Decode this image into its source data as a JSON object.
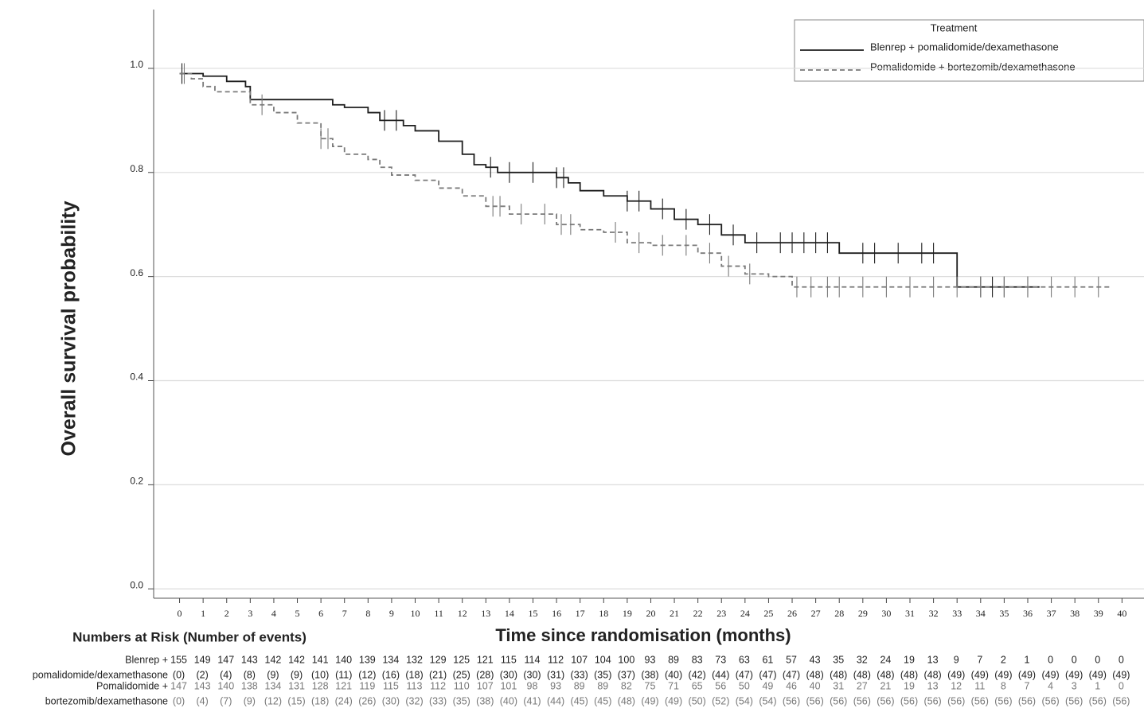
{
  "chart_data": {
    "type": "line",
    "step": "post",
    "y_label": "Overall survival probability",
    "x_label": "Time since randomisation (months)",
    "legend_title": "Treatment",
    "legend_position": "upper right",
    "grid": true,
    "xlim": [
      -1.1,
      40.9
    ],
    "ylim": [
      -0.018,
      1.113
    ],
    "xticks": [
      0,
      1,
      2,
      3,
      4,
      5,
      6,
      7,
      8,
      9,
      10,
      11,
      12,
      13,
      14,
      15,
      16,
      17,
      18,
      19,
      20,
      21,
      22,
      23,
      24,
      25,
      26,
      27,
      28,
      29,
      30,
      31,
      32,
      33,
      34,
      35,
      36,
      37,
      38,
      39,
      40
    ],
    "yticks": [
      {
        "value": 0,
        "label": "0.0"
      },
      0.2,
      0.4,
      0.6,
      0.8,
      {
        "value": 1,
        "label": "1.0"
      }
    ],
    "series": [
      {
        "name": "Blenrep + pomalidomide/dexamethasone",
        "color": "#1e1e1e",
        "dash": "solid",
        "x": [
          0,
          1,
          2,
          2.8,
          3,
          6.5,
          7,
          8,
          8.5,
          9.5,
          10,
          11,
          12,
          12.5,
          13,
          13.5,
          16,
          16.5,
          17,
          18,
          19,
          20,
          21,
          22,
          23,
          24,
          28,
          33,
          36.5
        ],
        "values": [
          0.99,
          0.985,
          0.975,
          0.965,
          0.94,
          0.93,
          0.925,
          0.915,
          0.9,
          0.89,
          0.88,
          0.86,
          0.835,
          0.815,
          0.81,
          0.8,
          0.79,
          0.78,
          0.765,
          0.755,
          0.745,
          0.73,
          0.71,
          0.7,
          0.68,
          0.665,
          0.645,
          0.58,
          0.58
        ],
        "censored_x": [
          0.1,
          8.7,
          9.2,
          13.2,
          14,
          15,
          16,
          16.3,
          19,
          19.5,
          20.5,
          21.5,
          22.5,
          23.5,
          24.5,
          25.5,
          26,
          26.5,
          27,
          27.5,
          29,
          29.5,
          30.5,
          31.5,
          32,
          34,
          34.5,
          35,
          36
        ],
        "censored_y": [
          0.99,
          0.9,
          0.9,
          0.81,
          0.8,
          0.8,
          0.79,
          0.79,
          0.745,
          0.745,
          0.73,
          0.71,
          0.7,
          0.68,
          0.665,
          0.665,
          0.665,
          0.665,
          0.665,
          0.665,
          0.645,
          0.645,
          0.645,
          0.645,
          0.645,
          0.58,
          0.58,
          0.58,
          0.58
        ]
      },
      {
        "name": "Pomalidomide + bortezomib/dexamethasone",
        "color": "#7a7a7a",
        "dash": "dashed",
        "x": [
          0,
          0.5,
          1,
          1.5,
          3,
          4,
          5,
          6,
          6.5,
          7,
          8,
          8.5,
          9,
          10,
          11,
          12,
          13,
          14,
          16,
          17,
          18,
          19,
          20,
          22,
          23,
          24,
          25,
          26,
          39.5
        ],
        "values": [
          0.99,
          0.98,
          0.965,
          0.955,
          0.93,
          0.915,
          0.895,
          0.865,
          0.85,
          0.835,
          0.825,
          0.81,
          0.795,
          0.785,
          0.77,
          0.755,
          0.735,
          0.72,
          0.7,
          0.69,
          0.685,
          0.665,
          0.66,
          0.645,
          0.62,
          0.605,
          0.6,
          0.58,
          0.58
        ],
        "censored_x": [
          0.2,
          3.5,
          6,
          6.3,
          13.3,
          13.6,
          14.5,
          15.5,
          16.2,
          16.6,
          18.5,
          19.5,
          20.5,
          21.5,
          22.5,
          23.3,
          24.2,
          26.2,
          26.8,
          27.5,
          28,
          29,
          30,
          31,
          32,
          33,
          34,
          35,
          36,
          37,
          38,
          39
        ],
        "censored_y": [
          0.99,
          0.93,
          0.865,
          0.865,
          0.735,
          0.735,
          0.72,
          0.72,
          0.7,
          0.7,
          0.685,
          0.665,
          0.66,
          0.66,
          0.645,
          0.62,
          0.605,
          0.58,
          0.58,
          0.58,
          0.58,
          0.58,
          0.58,
          0.58,
          0.58,
          0.58,
          0.58,
          0.58,
          0.58,
          0.58,
          0.58,
          0.58
        ]
      }
    ],
    "risk_table": {
      "title": "Numbers at Risk (Number of events)",
      "rows": [
        {
          "label": [
            "Blenrep +",
            "pomalidomide/dexamethasone"
          ],
          "color": "#1e1e1e",
          "at_risk": [
            155,
            149,
            147,
            143,
            142,
            142,
            141,
            140,
            139,
            134,
            132,
            129,
            125,
            121,
            115,
            114,
            112,
            107,
            104,
            100,
            93,
            89,
            83,
            73,
            63,
            61,
            57,
            43,
            35,
            32,
            24,
            19,
            13,
            9,
            7,
            2,
            1,
            0,
            0,
            0,
            0
          ],
          "events": [
            "(0)",
            "(2)",
            "(4)",
            "(8)",
            "(9)",
            "(9)",
            "(10)",
            "(11)",
            "(12)",
            "(16)",
            "(18)",
            "(21)",
            "(25)",
            "(28)",
            "(30)",
            "(30)",
            "(31)",
            "(33)",
            "(35)",
            "(37)",
            "(38)",
            "(40)",
            "(42)",
            "(44)",
            "(47)",
            "(47)",
            "(47)",
            "(48)",
            "(48)",
            "(48)",
            "(48)",
            "(48)",
            "(48)",
            "(49)",
            "(49)",
            "(49)",
            "(49)",
            "(49)",
            "(49)",
            "(49)",
            "(49)"
          ]
        },
        {
          "label": [
            "Pomalidomide +",
            "bortezomib/dexamethasone"
          ],
          "color": "#777777",
          "at_risk": [
            147,
            143,
            140,
            138,
            134,
            131,
            128,
            121,
            119,
            115,
            113,
            112,
            110,
            107,
            101,
            98,
            93,
            89,
            89,
            82,
            75,
            71,
            65,
            56,
            50,
            49,
            46,
            40,
            31,
            27,
            21,
            19,
            13,
            12,
            11,
            8,
            7,
            4,
            3,
            1,
            0
          ],
          "events": [
            "(0)",
            "(4)",
            "(7)",
            "(9)",
            "(12)",
            "(15)",
            "(18)",
            "(24)",
            "(26)",
            "(30)",
            "(32)",
            "(33)",
            "(35)",
            "(38)",
            "(40)",
            "(41)",
            "(44)",
            "(45)",
            "(45)",
            "(48)",
            "(49)",
            "(49)",
            "(50)",
            "(52)",
            "(54)",
            "(54)",
            "(56)",
            "(56)",
            "(56)",
            "(56)",
            "(56)",
            "(56)",
            "(56)",
            "(56)",
            "(56)",
            "(56)",
            "(56)",
            "(56)",
            "(56)",
            "(56)",
            "(56)"
          ]
        }
      ]
    }
  }
}
